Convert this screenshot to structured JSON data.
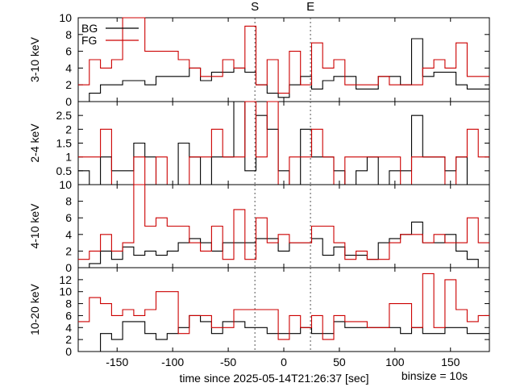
{
  "chart_data": {
    "type": "line",
    "style": "step",
    "xlabel": "time since 2025-05-14T21:26:37 [sec]",
    "xlim": [
      -185,
      185
    ],
    "xticks": [
      -150,
      -100,
      -50,
      0,
      50,
      100,
      150
    ],
    "binsize_label": "binsize = 10s",
    "markers": [
      {
        "label": "S",
        "x": -26
      },
      {
        "label": "E",
        "x": 24
      }
    ],
    "legend": {
      "position": "top-left",
      "entries": [
        "BG",
        "FG"
      ]
    },
    "colors": {
      "BG": "#000000",
      "FG": "#cc0000"
    },
    "x": [
      -185,
      -175,
      -165,
      -155,
      -145,
      -135,
      -125,
      -115,
      -105,
      -95,
      -85,
      -75,
      -65,
      -55,
      -45,
      -35,
      -25,
      -15,
      -5,
      5,
      15,
      25,
      35,
      45,
      55,
      65,
      75,
      85,
      95,
      105,
      115,
      125,
      135,
      145,
      155,
      165,
      175
    ],
    "panels": [
      {
        "ylabel": "3-10 keV",
        "ylim": [
          0,
          10
        ],
        "yticks": [
          0,
          2,
          4,
          6,
          8,
          10
        ],
        "series": [
          {
            "name": "BG",
            "values": [
              0,
              1,
              2,
              2,
              2.5,
              2.5,
              2,
              3,
              3,
              3,
              4,
              2.5,
              3.5,
              3.5,
              4,
              3.5,
              2,
              1,
              0.5,
              2,
              3,
              1.5,
              2.5,
              3,
              3,
              1.5,
              1.5,
              3,
              3,
              2,
              7.5,
              3,
              3.5,
              3.5,
              2,
              1.5,
              1.5
            ]
          },
          {
            "name": "FG",
            "values": [
              2,
              5,
              4,
              5,
              10,
              10,
              6,
              6,
              6,
              5,
              4,
              3,
              3,
              5,
              4,
              9,
              2,
              5,
              1,
              6,
              2,
              7,
              4,
              5,
              2,
              2,
              2,
              3,
              2,
              2,
              2,
              4,
              5,
              4,
              7,
              3,
              3
            ]
          }
        ]
      },
      {
        "ylabel": "2-4 keV",
        "ylim": [
          0,
          3
        ],
        "yticks": [
          0.5,
          1,
          1.5,
          2,
          2.5
        ],
        "series": [
          {
            "name": "BG",
            "values": [
              0.5,
              0,
              1,
              0.5,
              0.5,
              1.5,
              1,
              0,
              0,
              1.5,
              1,
              0,
              1,
              1,
              3,
              0.5,
              2.5,
              2,
              0.5,
              0,
              2,
              1,
              1,
              0.5,
              0,
              0.5,
              1,
              0,
              0.5,
              0.5,
              2.5,
              1,
              1,
              0.5,
              1,
              0,
              0
            ]
          },
          {
            "name": "FG",
            "values": [
              1,
              1,
              2,
              0,
              0,
              1,
              0,
              1,
              0,
              0,
              1,
              1,
              2,
              1,
              1,
              3,
              1,
              3,
              0,
              1,
              1,
              2,
              1,
              0,
              1,
              1,
              1,
              1,
              1,
              0,
              1,
              1,
              1,
              0,
              1,
              2,
              1
            ]
          }
        ]
      },
      {
        "ylabel": "4-10 keV",
        "ylim": [
          0,
          10
        ],
        "yticks": [
          0,
          2,
          4,
          6,
          8,
          10
        ],
        "series": [
          {
            "name": "BG",
            "values": [
              0,
              0.5,
              2,
              1,
              2.5,
              1.5,
              2,
              1.5,
              2,
              3,
              3.5,
              3,
              2,
              3,
              3,
              3,
              3.5,
              3.5,
              2,
              3,
              3,
              3.5,
              1.5,
              2.5,
              1.5,
              1.5,
              1,
              3,
              3.5,
              4,
              5.5,
              3,
              3,
              4,
              2,
              1,
              0
            ]
          },
          {
            "name": "FG",
            "values": [
              1,
              2,
              4,
              2,
              3,
              10,
              5,
              6,
              5,
              5,
              3,
              2,
              5,
              1,
              7,
              1,
              6,
              3,
              4,
              3,
              3,
              5,
              5,
              3,
              1,
              2,
              1,
              1,
              3,
              4,
              4,
              3,
              4,
              3,
              3,
              6,
              3
            ]
          }
        ]
      },
      {
        "ylabel": "10-20 keV",
        "ylim": [
          0,
          14
        ],
        "yticks": [
          0,
          2,
          4,
          6,
          8,
          10,
          12
        ],
        "series": [
          {
            "name": "BG",
            "values": [
              0,
              0,
              3,
              2,
              5,
              5,
              3,
              2,
              3,
              4,
              6,
              5,
              3,
              5,
              5,
              4,
              4,
              3,
              3,
              3,
              4,
              3,
              3,
              5,
              4,
              4,
              4,
              4,
              4,
              3,
              4,
              3,
              3,
              4,
              4,
              3,
              3
            ]
          },
          {
            "name": "FG",
            "values": [
              5,
              9,
              8,
              6,
              7,
              6,
              7,
              10,
              10,
              3,
              6,
              6,
              4,
              4,
              7,
              7,
              7,
              7,
              2,
              6,
              4,
              6,
              2,
              6,
              5,
              5,
              4,
              4,
              8,
              8,
              4,
              13,
              4,
              12,
              7,
              5,
              6
            ]
          }
        ]
      }
    ]
  }
}
